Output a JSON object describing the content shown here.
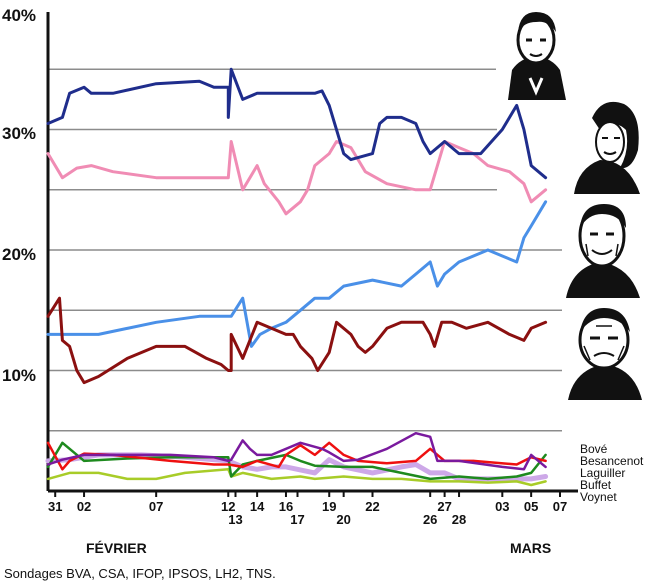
{
  "chart_data": {
    "type": "line",
    "title": "",
    "xlabel": "",
    "ylabel": "",
    "ylim": [
      0,
      40
    ],
    "y_ticks": [
      "10%",
      "20%",
      "30%",
      "40%"
    ],
    "x_tick_labels": [
      "31",
      "02",
      "07",
      "12",
      "13",
      "14",
      "16",
      "17",
      "19",
      "20",
      "22",
      "26",
      "27",
      "28",
      "03",
      "05",
      "07"
    ],
    "x_tick_days": [
      0,
      2,
      7,
      12,
      12.5,
      14,
      16,
      16.8,
      19,
      20,
      22,
      26,
      27,
      28,
      31,
      33,
      35
    ],
    "months": [
      {
        "label": "FÉVRIER",
        "day": 4.5
      },
      {
        "label": "MARS",
        "day": 33
      }
    ],
    "legend_labels": [
      "Bové",
      "Besancenot",
      "Laguiller",
      "Buffet",
      "Voynet"
    ],
    "source_note": "Sondages BVA, CSA, IFOP, IPSOS, LH2, TNS.",
    "portraits": [
      "portrait-sarkozy",
      "portrait-royal",
      "portrait-bayrou",
      "portrait-le-pen"
    ],
    "series": [
      {
        "key": "sarkozy",
        "color": "#1f2d8c",
        "width": 3,
        "points": [
          [
            -0.5,
            30.5
          ],
          [
            0.5,
            31
          ],
          [
            1,
            33
          ],
          [
            2,
            33.5
          ],
          [
            2.5,
            33
          ],
          [
            4,
            33
          ],
          [
            7,
            33.8
          ],
          [
            10,
            34
          ],
          [
            11,
            33.5
          ],
          [
            12,
            33.5
          ],
          [
            12,
            31
          ],
          [
            12.2,
            35
          ],
          [
            13,
            32.5
          ],
          [
            14,
            33
          ],
          [
            16,
            33
          ],
          [
            18,
            33
          ],
          [
            18.5,
            33.2
          ],
          [
            19,
            32
          ],
          [
            20,
            28
          ],
          [
            20.5,
            27.5
          ],
          [
            22,
            28
          ],
          [
            22.5,
            30.5
          ],
          [
            23,
            31
          ],
          [
            24,
            31
          ],
          [
            25,
            30.5
          ],
          [
            25.5,
            29
          ],
          [
            26,
            28
          ],
          [
            27,
            29
          ],
          [
            28,
            28
          ],
          [
            29.5,
            28
          ],
          [
            31,
            30
          ],
          [
            32,
            32
          ],
          [
            32.5,
            30
          ],
          [
            33,
            27
          ],
          [
            34,
            26
          ]
        ]
      },
      {
        "key": "royal",
        "color": "#f08cb4",
        "width": 3,
        "points": [
          [
            -0.5,
            28
          ],
          [
            0.5,
            26
          ],
          [
            1.5,
            26.8
          ],
          [
            2.5,
            27
          ],
          [
            4,
            26.5
          ],
          [
            7,
            26
          ],
          [
            10,
            26
          ],
          [
            12,
            26
          ],
          [
            12.2,
            29
          ],
          [
            13,
            25
          ],
          [
            14,
            27
          ],
          [
            14.5,
            25.5
          ],
          [
            15.5,
            24
          ],
          [
            16,
            23
          ],
          [
            17,
            24
          ],
          [
            17.5,
            25
          ],
          [
            18,
            27
          ],
          [
            19,
            28
          ],
          [
            19.5,
            29
          ],
          [
            20.5,
            28.5
          ],
          [
            21.5,
            26.5
          ],
          [
            23,
            25.5
          ],
          [
            25,
            25
          ],
          [
            26,
            25
          ],
          [
            27,
            29
          ],
          [
            28,
            28.5
          ],
          [
            29,
            28
          ],
          [
            30,
            27
          ],
          [
            31.5,
            26.5
          ],
          [
            32.5,
            25.5
          ],
          [
            33,
            24
          ],
          [
            34,
            25
          ]
        ]
      },
      {
        "key": "bayrou",
        "color": "#4a90e8",
        "width": 3,
        "points": [
          [
            -0.5,
            13
          ],
          [
            1,
            13
          ],
          [
            3,
            13
          ],
          [
            7,
            14
          ],
          [
            10,
            14.5
          ],
          [
            12,
            14.5
          ],
          [
            12.2,
            14.5
          ],
          [
            13,
            16
          ],
          [
            13.6,
            12
          ],
          [
            14.2,
            13
          ],
          [
            15,
            13.5
          ],
          [
            16,
            14
          ],
          [
            17,
            15
          ],
          [
            18,
            16
          ],
          [
            19,
            16
          ],
          [
            20,
            17
          ],
          [
            22,
            17.5
          ],
          [
            24,
            17
          ],
          [
            25,
            18
          ],
          [
            26,
            19
          ],
          [
            26.5,
            17
          ],
          [
            27,
            18
          ],
          [
            28,
            19
          ],
          [
            30,
            20
          ],
          [
            31,
            19.5
          ],
          [
            32,
            19
          ],
          [
            32.5,
            21
          ],
          [
            33,
            22
          ],
          [
            34,
            24
          ]
        ]
      },
      {
        "key": "lepen",
        "color": "#8b1010",
        "width": 3,
        "points": [
          [
            -0.5,
            14.5
          ],
          [
            0.3,
            16
          ],
          [
            0.5,
            12.5
          ],
          [
            1,
            12
          ],
          [
            1.5,
            10
          ],
          [
            2,
            9
          ],
          [
            3,
            9.5
          ],
          [
            5,
            11
          ],
          [
            7,
            12
          ],
          [
            9,
            12
          ],
          [
            10.5,
            11
          ],
          [
            11.5,
            10.5
          ],
          [
            12,
            10
          ],
          [
            12.2,
            10
          ],
          [
            12.2,
            13
          ],
          [
            13,
            11
          ],
          [
            14,
            14
          ],
          [
            16,
            13
          ],
          [
            16.5,
            13
          ],
          [
            17,
            12
          ],
          [
            17.8,
            11
          ],
          [
            18.2,
            10
          ],
          [
            19,
            11.5
          ],
          [
            19.5,
            14
          ],
          [
            20.5,
            13
          ],
          [
            21,
            12
          ],
          [
            21.5,
            11.5
          ],
          [
            22,
            12
          ],
          [
            23,
            13.5
          ],
          [
            24,
            14
          ],
          [
            25.5,
            14
          ],
          [
            26,
            13
          ],
          [
            26.3,
            12
          ],
          [
            26.8,
            14
          ],
          [
            27.5,
            14
          ],
          [
            28.5,
            13.5
          ],
          [
            30,
            14
          ],
          [
            31.5,
            13
          ],
          [
            32.5,
            12.5
          ],
          [
            33,
            13.5
          ],
          [
            34,
            14
          ]
        ]
      },
      {
        "key": "bove",
        "color": "#7a1a9e",
        "width": 2.5,
        "points": [
          [
            -0.5,
            2.2
          ],
          [
            0.5,
            2.6
          ],
          [
            2,
            3
          ],
          [
            4,
            3
          ],
          [
            8,
            3
          ],
          [
            11,
            2.8
          ],
          [
            12,
            2.5
          ],
          [
            12.2,
            2.6
          ],
          [
            13,
            4.2
          ],
          [
            13.5,
            3.5
          ],
          [
            14,
            3
          ],
          [
            15,
            3
          ],
          [
            17,
            4
          ],
          [
            18.5,
            3.5
          ],
          [
            19,
            3.2
          ],
          [
            20,
            2.5
          ],
          [
            21,
            2.6
          ],
          [
            23,
            3.5
          ],
          [
            25,
            4.8
          ],
          [
            26,
            4.5
          ],
          [
            26.5,
            2.5
          ],
          [
            28,
            2.5
          ],
          [
            31,
            2
          ],
          [
            32.5,
            1.8
          ],
          [
            33,
            3
          ],
          [
            34,
            2
          ]
        ]
      },
      {
        "key": "besancenot",
        "color": "#ee1010",
        "width": 2.5,
        "points": [
          [
            -0.5,
            4
          ],
          [
            0.5,
            1.8
          ],
          [
            1,
            2.5
          ],
          [
            2,
            3.1
          ],
          [
            4,
            3
          ],
          [
            8,
            2.5
          ],
          [
            11,
            2.2
          ],
          [
            12,
            2.2
          ],
          [
            13,
            2
          ],
          [
            14,
            2.5
          ],
          [
            15.5,
            2
          ],
          [
            16,
            3
          ],
          [
            17,
            3.8
          ],
          [
            18,
            3
          ],
          [
            19,
            4
          ],
          [
            20,
            3
          ],
          [
            21,
            2.5
          ],
          [
            23,
            2.3
          ],
          [
            25,
            2.5
          ],
          [
            26,
            3.5
          ],
          [
            27,
            2.5
          ],
          [
            29,
            2.5
          ],
          [
            32,
            2.2
          ],
          [
            33,
            2.8
          ],
          [
            34,
            2.5
          ]
        ]
      },
      {
        "key": "laguiller",
        "color": "#cda8e8",
        "width": 5,
        "points": [
          [
            -0.5,
            2.5
          ],
          [
            1,
            2.6
          ],
          [
            3,
            3
          ],
          [
            6,
            3
          ],
          [
            9,
            2.8
          ],
          [
            12,
            2.5
          ],
          [
            13,
            2
          ],
          [
            14,
            1.8
          ],
          [
            15,
            2
          ],
          [
            16,
            2
          ],
          [
            18,
            1.5
          ],
          [
            19,
            2.6
          ],
          [
            20,
            2
          ],
          [
            22,
            1.5
          ],
          [
            24,
            2
          ],
          [
            25,
            2.2
          ],
          [
            26,
            1.5
          ],
          [
            27,
            1.5
          ],
          [
            28,
            1
          ],
          [
            30,
            1
          ],
          [
            33,
            1
          ],
          [
            34,
            1.2
          ]
        ]
      },
      {
        "key": "buffet",
        "color": "#1e8a1e",
        "width": 2.5,
        "points": [
          [
            -0.5,
            2
          ],
          [
            0.5,
            4
          ],
          [
            1,
            3.5
          ],
          [
            2,
            2.5
          ],
          [
            5,
            2.7
          ],
          [
            8,
            2.8
          ],
          [
            12,
            2.8
          ],
          [
            12.2,
            1.2
          ],
          [
            13,
            2.2
          ],
          [
            14,
            2.5
          ],
          [
            16,
            3
          ],
          [
            17,
            2.5
          ],
          [
            18,
            2.1
          ],
          [
            20,
            2
          ],
          [
            22,
            2
          ],
          [
            24,
            1.5
          ],
          [
            26,
            1
          ],
          [
            28,
            1.2
          ],
          [
            30,
            1
          ],
          [
            32,
            1.2
          ],
          [
            33,
            1.5
          ],
          [
            34,
            3
          ]
        ]
      },
      {
        "key": "voynet",
        "color": "#a8cc28",
        "width": 2.5,
        "points": [
          [
            -0.5,
            1
          ],
          [
            1,
            1.5
          ],
          [
            3,
            1.5
          ],
          [
            5,
            1
          ],
          [
            7,
            1
          ],
          [
            9,
            1.5
          ],
          [
            12,
            1.8
          ],
          [
            12.2,
            1.2
          ],
          [
            13,
            1.5
          ],
          [
            15,
            1
          ],
          [
            17,
            1.2
          ],
          [
            18,
            1
          ],
          [
            20,
            1.2
          ],
          [
            22,
            1
          ],
          [
            24,
            1
          ],
          [
            26,
            0.8
          ],
          [
            28,
            0.8
          ],
          [
            30,
            0.7
          ],
          [
            32,
            0.8
          ],
          [
            33,
            0.5
          ],
          [
            34,
            0.8
          ]
        ]
      }
    ]
  }
}
